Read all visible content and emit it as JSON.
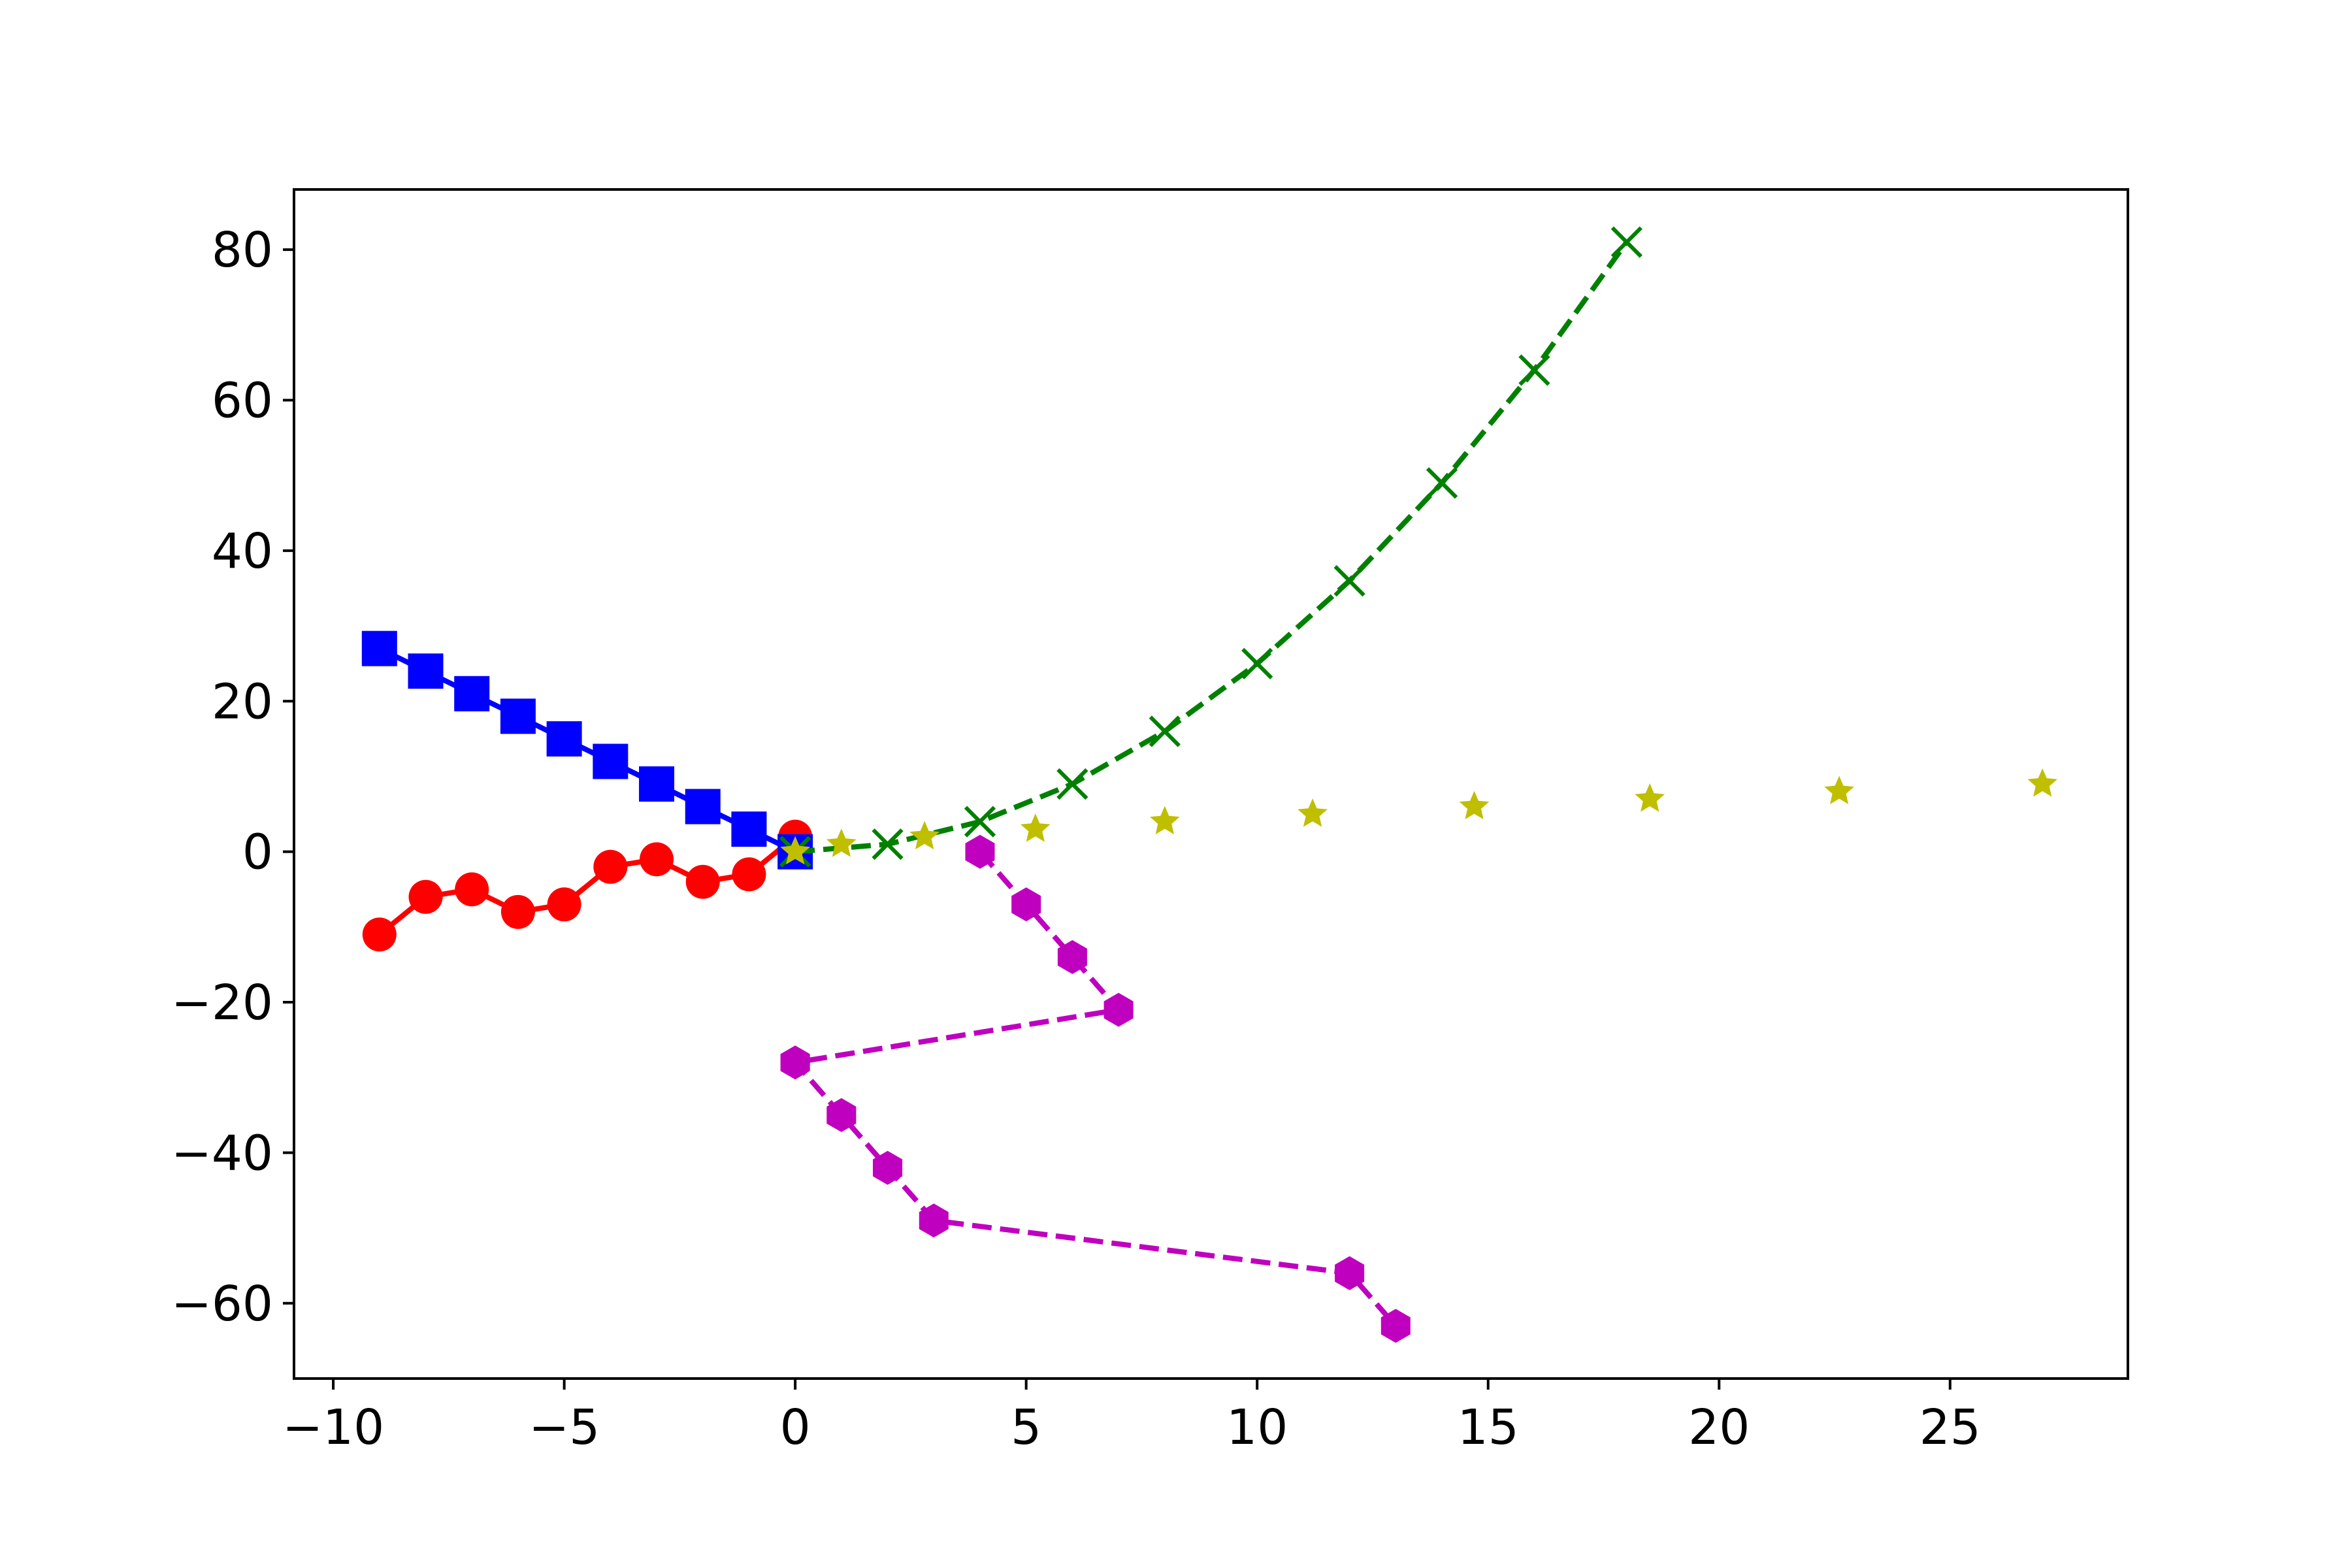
{
  "chart_data": {
    "type": "line",
    "title": "",
    "xlabel": "",
    "ylabel": "",
    "xlim": [
      -10.85,
      28.85
    ],
    "ylim": [
      -70.0,
      88.0
    ],
    "xticks": [
      -10,
      -5,
      0,
      5,
      10,
      15,
      20,
      25
    ],
    "yticks": [
      -60,
      -40,
      -20,
      0,
      20,
      40,
      60,
      80
    ],
    "grid": false,
    "legend": "none",
    "series": [
      {
        "color": "#ff0000",
        "marker": "circle",
        "linestyle": "solid",
        "x": [
          0,
          -1,
          -2,
          -3,
          -4,
          -5,
          -6,
          -7,
          -8,
          -9
        ],
        "y": [
          2,
          -3,
          -4,
          -1,
          -2,
          -7,
          -8,
          -5,
          -6,
          -11
        ]
      },
      {
        "color": "#0000ff",
        "marker": "square",
        "linestyle": "solid",
        "x": [
          0,
          -1,
          -2,
          -3,
          -4,
          -5,
          -6,
          -7,
          -8,
          -9
        ],
        "y": [
          0,
          3,
          6,
          9,
          12,
          15,
          18,
          21,
          24,
          27
        ]
      },
      {
        "color": "#008000",
        "marker": "x",
        "linestyle": "dashed",
        "x": [
          0,
          2,
          4,
          6,
          8,
          10,
          12,
          14,
          16,
          18
        ],
        "y": [
          0,
          1,
          4,
          9,
          16,
          25,
          36,
          49,
          64,
          81
        ]
      },
      {
        "color": "#bfbf00",
        "marker": "star",
        "linestyle": "none",
        "x": [
          0,
          1.0,
          2.8,
          5.2,
          8.0,
          11.2,
          14.7,
          18.5,
          22.6,
          27.0
        ],
        "y": [
          0,
          1,
          2,
          3,
          4,
          5,
          6,
          7,
          8,
          9
        ]
      },
      {
        "color": "#bf00bf",
        "marker": "hexagon",
        "linestyle": "dashed",
        "x": [
          4,
          5,
          6,
          7,
          0,
          1,
          2,
          3,
          12,
          13
        ],
        "y": [
          0,
          -7,
          -14,
          -21,
          -28,
          -35,
          -42,
          -49,
          -56,
          -63
        ]
      }
    ]
  }
}
